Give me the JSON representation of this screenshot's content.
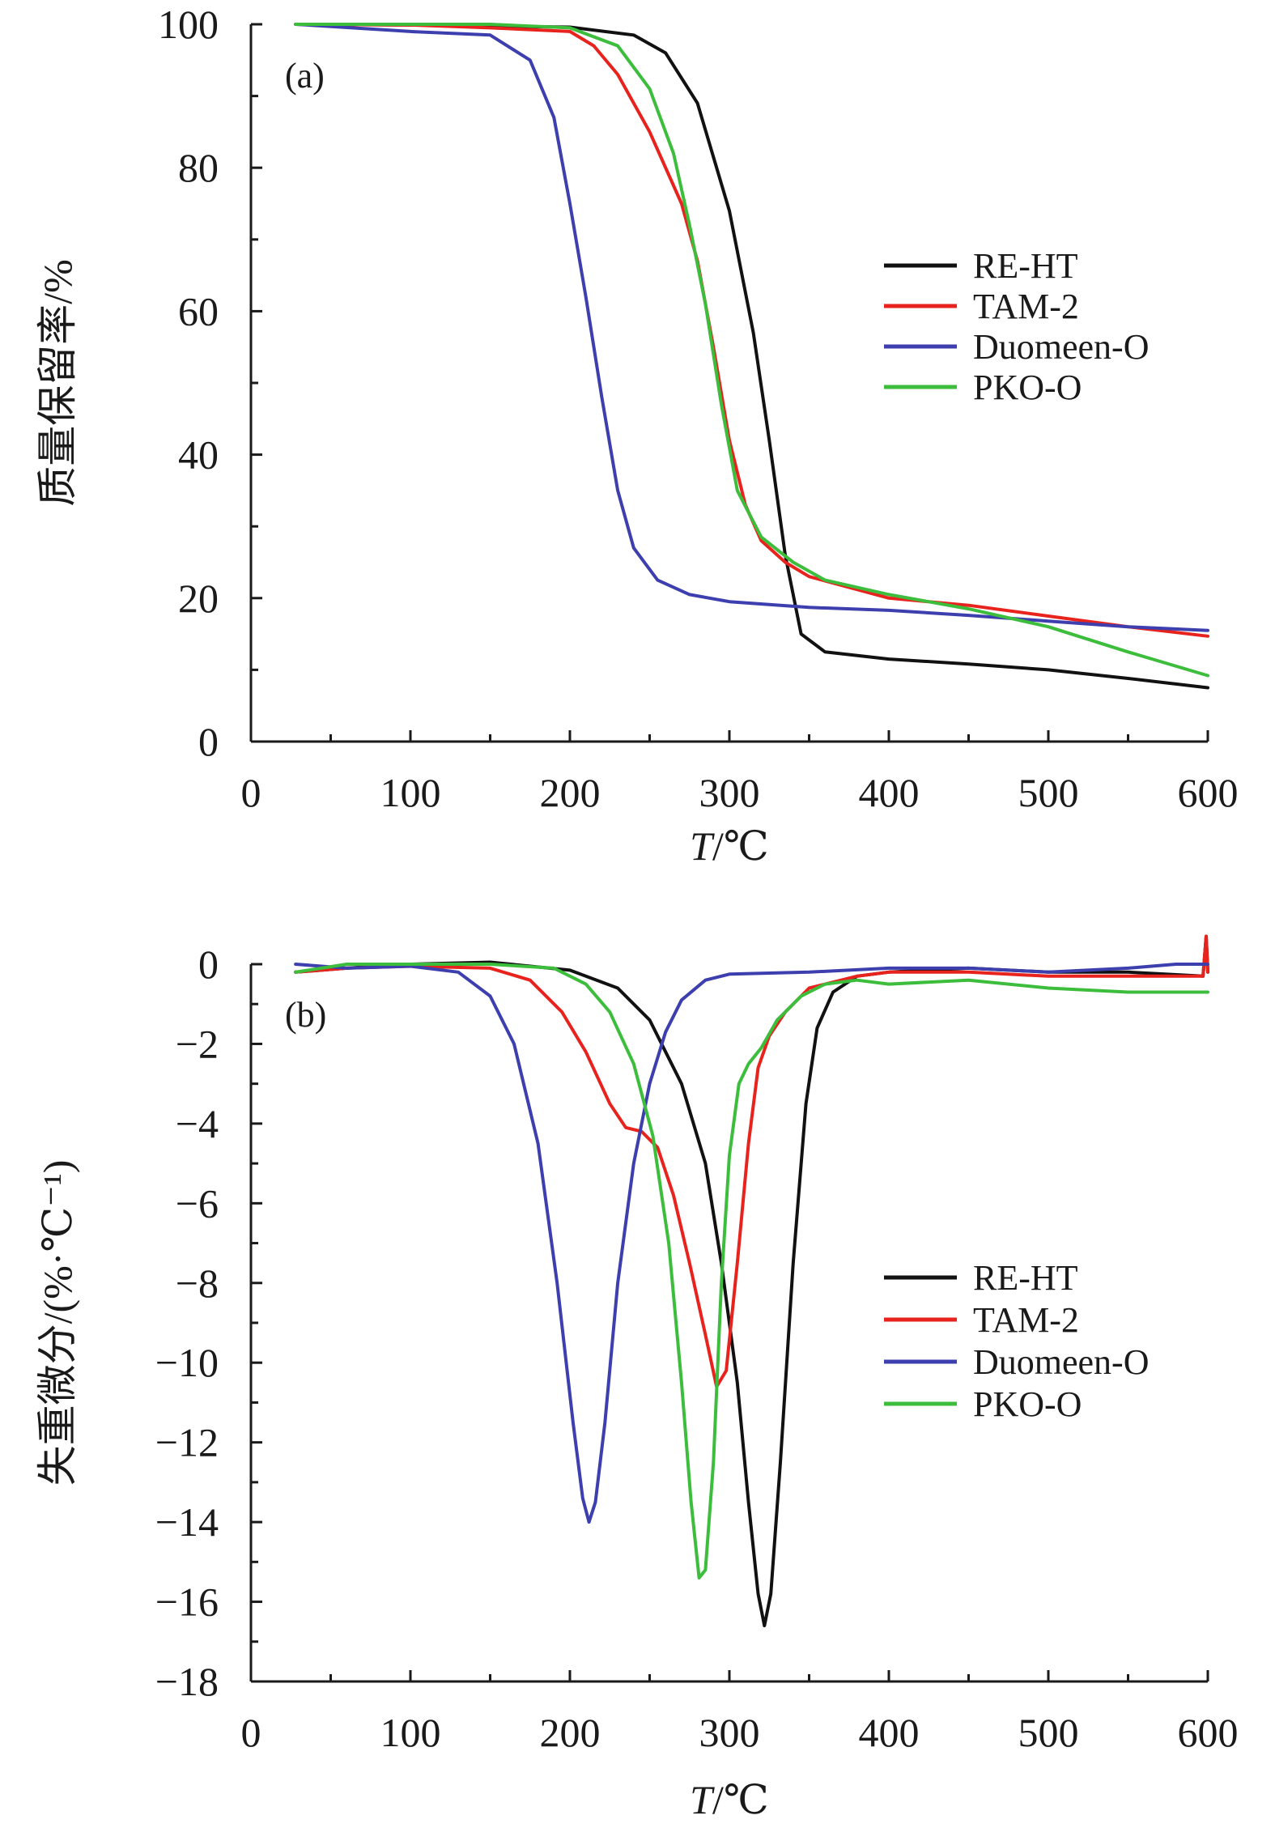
{
  "chart_data": [
    {
      "type": "line",
      "panel_label": "(a)",
      "xlabel_var": "T",
      "xlabel_unit": "/℃",
      "ylabel": "质量保留率/%",
      "xlim": [
        0,
        600
      ],
      "ylim": [
        0,
        100
      ],
      "xticks": [
        0,
        100,
        200,
        300,
        400,
        500,
        600
      ],
      "yticks": [
        0,
        20,
        40,
        60,
        80,
        100
      ],
      "yticks_text": [
        "0",
        "20",
        "40",
        "60",
        "80",
        "100"
      ],
      "legend_position": "right-middle",
      "series": [
        {
          "name": "RE-HT",
          "color": "#111111",
          "points": [
            [
              28,
              100
            ],
            [
              100,
              99.9
            ],
            [
              200,
              99.6
            ],
            [
              240,
              98.5
            ],
            [
              260,
              96
            ],
            [
              280,
              89
            ],
            [
              300,
              74
            ],
            [
              315,
              57
            ],
            [
              325,
              42
            ],
            [
              335,
              26
            ],
            [
              345,
              15
            ],
            [
              360,
              12.5
            ],
            [
              400,
              11.5
            ],
            [
              450,
              10.8
            ],
            [
              500,
              10
            ],
            [
              550,
              8.8
            ],
            [
              600,
              7.5
            ]
          ]
        },
        {
          "name": "TAM-2",
          "color": "#e8231e",
          "points": [
            [
              28,
              100
            ],
            [
              100,
              99.9
            ],
            [
              150,
              99.5
            ],
            [
              200,
              99
            ],
            [
              215,
              97
            ],
            [
              230,
              93
            ],
            [
              250,
              85
            ],
            [
              270,
              75
            ],
            [
              280,
              67
            ],
            [
              290,
              55
            ],
            [
              300,
              42
            ],
            [
              310,
              33
            ],
            [
              320,
              28
            ],
            [
              335,
              25
            ],
            [
              350,
              23
            ],
            [
              400,
              20
            ],
            [
              450,
              19
            ],
            [
              500,
              17.5
            ],
            [
              550,
              16
            ],
            [
              600,
              14.7
            ]
          ]
        },
        {
          "name": "Duomeen-O",
          "color": "#3d3fae",
          "points": [
            [
              28,
              100
            ],
            [
              100,
              99
            ],
            [
              150,
              98.5
            ],
            [
              175,
              95
            ],
            [
              190,
              87
            ],
            [
              200,
              75
            ],
            [
              210,
              62
            ],
            [
              220,
              48
            ],
            [
              230,
              35
            ],
            [
              240,
              27
            ],
            [
              255,
              22.5
            ],
            [
              275,
              20.5
            ],
            [
              300,
              19.5
            ],
            [
              350,
              18.7
            ],
            [
              400,
              18.3
            ],
            [
              450,
              17.6
            ],
            [
              500,
              16.8
            ],
            [
              550,
              16
            ],
            [
              600,
              15.5
            ]
          ]
        },
        {
          "name": "PKO-O",
          "color": "#3cbd3c",
          "points": [
            [
              28,
              100
            ],
            [
              100,
              100
            ],
            [
              150,
              100
            ],
            [
              200,
              99.5
            ],
            [
              230,
              97
            ],
            [
              250,
              91
            ],
            [
              265,
              82
            ],
            [
              275,
              72
            ],
            [
              285,
              61
            ],
            [
              295,
              47
            ],
            [
              305,
              35
            ],
            [
              320,
              28.5
            ],
            [
              340,
              25
            ],
            [
              360,
              22.5
            ],
            [
              400,
              20.5
            ],
            [
              450,
              18.5
            ],
            [
              500,
              16
            ],
            [
              550,
              12.5
            ],
            [
              600,
              9.2
            ]
          ]
        }
      ]
    },
    {
      "type": "line",
      "panel_label": "(b)",
      "xlabel_var": "T",
      "xlabel_unit": "/℃",
      "ylabel": "失重微分/(%·℃⁻¹)",
      "xlim": [
        0,
        600
      ],
      "ylim": [
        -18,
        0
      ],
      "xticks": [
        0,
        100,
        200,
        300,
        400,
        500,
        600
      ],
      "yticks": [
        -18,
        -16,
        -14,
        -12,
        -10,
        -8,
        -6,
        -4,
        -2,
        0
      ],
      "yticks_text": [
        "−18",
        "−16",
        "−14",
        "−12",
        "−10",
        "−8",
        "−6",
        "−4",
        "−2",
        "0"
      ],
      "legend_position": "right-middle",
      "series": [
        {
          "name": "RE-HT",
          "color": "#111111",
          "points": [
            [
              28,
              -0.2
            ],
            [
              60,
              -0.1
            ],
            [
              100,
              0
            ],
            [
              150,
              0.05
            ],
            [
              200,
              -0.15
            ],
            [
              230,
              -0.6
            ],
            [
              250,
              -1.4
            ],
            [
              270,
              -3
            ],
            [
              285,
              -5
            ],
            [
              295,
              -7.5
            ],
            [
              305,
              -10.5
            ],
            [
              312,
              -13.5
            ],
            [
              318,
              -15.8
            ],
            [
              322,
              -16.6
            ],
            [
              326,
              -15.8
            ],
            [
              332,
              -12.5
            ],
            [
              340,
              -7.5
            ],
            [
              348,
              -3.5
            ],
            [
              355,
              -1.6
            ],
            [
              365,
              -0.7
            ],
            [
              380,
              -0.3
            ],
            [
              400,
              -0.2
            ],
            [
              450,
              -0.1
            ],
            [
              500,
              -0.2
            ],
            [
              550,
              -0.2
            ],
            [
              597,
              -0.3
            ],
            [
              599,
              0.7
            ],
            [
              600,
              -0.2
            ]
          ]
        },
        {
          "name": "TAM-2",
          "color": "#e8231e",
          "points": [
            [
              28,
              -0.2
            ],
            [
              60,
              -0.1
            ],
            [
              100,
              -0.05
            ],
            [
              150,
              -0.1
            ],
            [
              175,
              -0.4
            ],
            [
              195,
              -1.2
            ],
            [
              210,
              -2.2
            ],
            [
              225,
              -3.5
            ],
            [
              235,
              -4.1
            ],
            [
              245,
              -4.2
            ],
            [
              255,
              -4.6
            ],
            [
              265,
              -5.8
            ],
            [
              275,
              -7.5
            ],
            [
              285,
              -9.3
            ],
            [
              292,
              -10.6
            ],
            [
              298,
              -10.2
            ],
            [
              305,
              -7.5
            ],
            [
              312,
              -4.5
            ],
            [
              318,
              -2.6
            ],
            [
              325,
              -1.8
            ],
            [
              335,
              -1.2
            ],
            [
              350,
              -0.6
            ],
            [
              380,
              -0.3
            ],
            [
              400,
              -0.2
            ],
            [
              450,
              -0.2
            ],
            [
              500,
              -0.3
            ],
            [
              550,
              -0.3
            ],
            [
              597,
              -0.3
            ],
            [
              599,
              0.7
            ],
            [
              600,
              -0.2
            ]
          ]
        },
        {
          "name": "Duomeen-O",
          "color": "#3d3fae",
          "points": [
            [
              28,
              0
            ],
            [
              60,
              -0.1
            ],
            [
              100,
              -0.05
            ],
            [
              130,
              -0.2
            ],
            [
              150,
              -0.8
            ],
            [
              165,
              -2
            ],
            [
              180,
              -4.5
            ],
            [
              192,
              -8
            ],
            [
              202,
              -11.5
            ],
            [
              208,
              -13.4
            ],
            [
              212,
              -14
            ],
            [
              216,
              -13.5
            ],
            [
              222,
              -11.5
            ],
            [
              230,
              -8
            ],
            [
              240,
              -5
            ],
            [
              250,
              -3
            ],
            [
              260,
              -1.7
            ],
            [
              270,
              -0.9
            ],
            [
              285,
              -0.4
            ],
            [
              300,
              -0.25
            ],
            [
              350,
              -0.2
            ],
            [
              400,
              -0.1
            ],
            [
              450,
              -0.1
            ],
            [
              500,
              -0.2
            ],
            [
              550,
              -0.1
            ],
            [
              580,
              0
            ],
            [
              600,
              0
            ]
          ]
        },
        {
          "name": "PKO-O",
          "color": "#3cbd3c",
          "points": [
            [
              28,
              -0.2
            ],
            [
              60,
              0
            ],
            [
              100,
              0
            ],
            [
              150,
              0
            ],
            [
              190,
              -0.1
            ],
            [
              210,
              -0.5
            ],
            [
              225,
              -1.2
            ],
            [
              240,
              -2.5
            ],
            [
              252,
              -4.3
            ],
            [
              262,
              -7
            ],
            [
              270,
              -10.5
            ],
            [
              276,
              -13.5
            ],
            [
              281,
              -15.4
            ],
            [
              285,
              -15.2
            ],
            [
              290,
              -12.5
            ],
            [
              295,
              -8
            ],
            [
              300,
              -4.8
            ],
            [
              306,
              -3
            ],
            [
              312,
              -2.5
            ],
            [
              320,
              -2.1
            ],
            [
              330,
              -1.4
            ],
            [
              345,
              -0.8
            ],
            [
              360,
              -0.5
            ],
            [
              380,
              -0.4
            ],
            [
              400,
              -0.5
            ],
            [
              450,
              -0.4
            ],
            [
              500,
              -0.6
            ],
            [
              550,
              -0.7
            ],
            [
              600,
              -0.7
            ]
          ]
        }
      ]
    }
  ]
}
